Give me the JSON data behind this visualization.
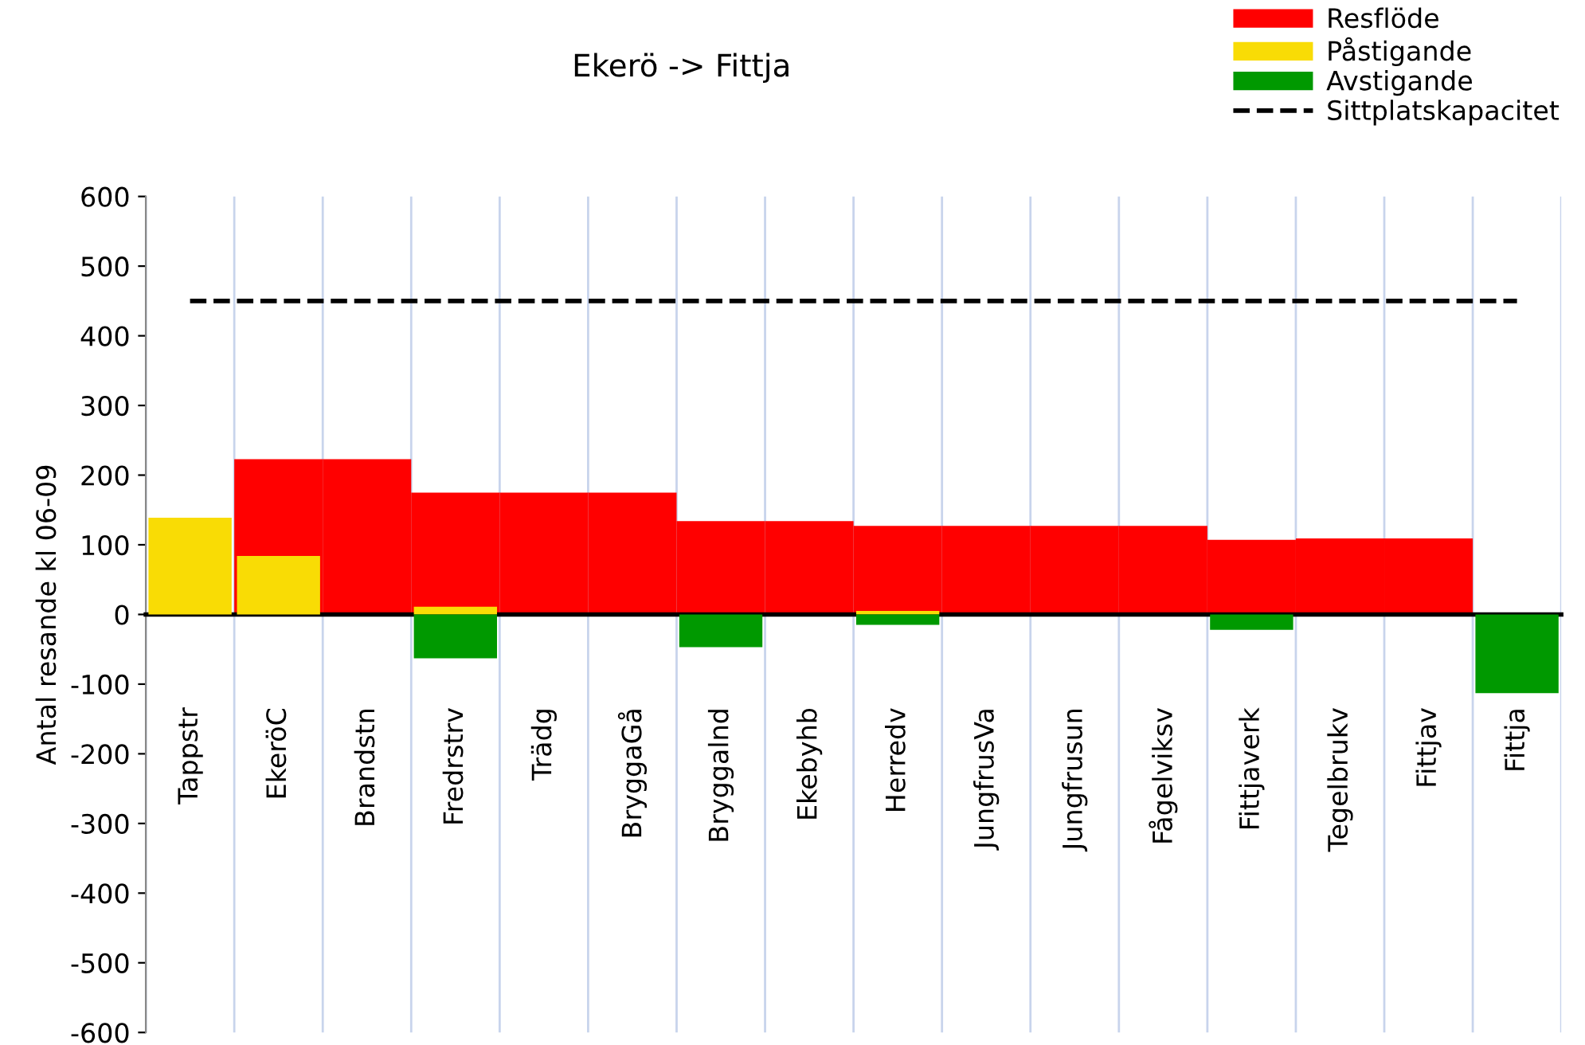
{
  "chart_data": {
    "type": "bar",
    "title": "Ekerö -> Fittja",
    "ylabel": "Antal resande kl 06-09",
    "categories": [
      "Tappstr",
      "EkeröC",
      "Brandstn",
      "Fredrstrv",
      "Trädg",
      "BryggaGå",
      "Bryggalnd",
      "Ekebyhb",
      "Herredv",
      "JungfrusVa",
      "Jungfrusun",
      "Fågelviksv",
      "Fittjaverk",
      "Tegelbrukv",
      "Fittjav",
      "Fittja"
    ],
    "series": [
      {
        "name": "Resflöde",
        "color": "#ff0000",
        "values": [
          0,
          223,
          223,
          175,
          175,
          175,
          134,
          134,
          127,
          127,
          127,
          127,
          107,
          109,
          109,
          0
        ]
      },
      {
        "name": "Påstigande",
        "color": "#f9dc05",
        "values": [
          139,
          84,
          0,
          11,
          0,
          0,
          0,
          0,
          5,
          0,
          0,
          0,
          0,
          null,
          0,
          0
        ]
      },
      {
        "name": "Avstigande",
        "color": "#009900",
        "values": [
          0,
          0,
          0,
          -63,
          0,
          0,
          -47,
          0,
          -15,
          0,
          0,
          0,
          -22,
          0,
          0,
          -113
        ]
      },
      {
        "name": "Sittplatskapacitet",
        "type": "line",
        "color": "#000000",
        "line_style": "dashed",
        "values": [
          450,
          450,
          450,
          450,
          450,
          450,
          450,
          450,
          450,
          450,
          450,
          450,
          450,
          450,
          450,
          450
        ]
      }
    ],
    "ylim": [
      -600,
      600
    ],
    "yticks": [
      -600,
      -500,
      -400,
      -300,
      -200,
      -100,
      0,
      100,
      200,
      300,
      400,
      500,
      600
    ],
    "grid": "x",
    "legend": "top right"
  }
}
